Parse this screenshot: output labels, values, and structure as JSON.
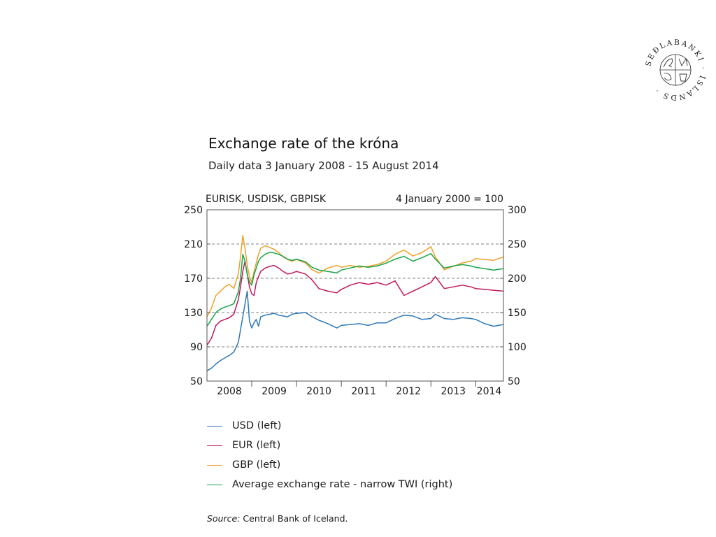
{
  "colors": {
    "usd": "#2f78b7",
    "eur": "#c3195c",
    "gbp": "#f0a02a",
    "twi": "#1aa54a",
    "grid": "#808080",
    "axis": "#555555"
  },
  "logo": {
    "text": "SEÐLABANKI ÍSLANDS",
    "icon": "central-bank-seal-icon"
  },
  "chart_data": {
    "type": "line",
    "title": "Exchange rate of the króna",
    "subtitle": "Daily data 3 January 2008 - 15 August 2014",
    "left_axis_label": "EURISK, USDISK, GBPISK",
    "right_axis_label": "4 January 2000 = 100",
    "left_ylim": [
      50,
      250
    ],
    "right_ylim": [
      50,
      300
    ],
    "left_ticks": [
      "250",
      "210",
      "170",
      "130",
      "90",
      "50"
    ],
    "right_ticks": [
      "300",
      "250",
      "200",
      "150",
      "100",
      "50"
    ],
    "left_tick_values": [
      250,
      210,
      170,
      130,
      90,
      50
    ],
    "right_tick_values": [
      300,
      250,
      200,
      150,
      100,
      50
    ],
    "xlim": [
      2008.0,
      2014.62
    ],
    "x_tick_labels": [
      "2008",
      "2009",
      "2010",
      "2011",
      "2012",
      "2013",
      "2014"
    ],
    "x_tick_positions": [
      2008.5,
      2009.5,
      2010.5,
      2011.5,
      2012.5,
      2013.5,
      2014.3
    ],
    "gridlines_left": [
      210,
      170,
      130,
      90
    ],
    "series": [
      {
        "name": "USD (left)",
        "key": "usd",
        "axis": "left",
        "x": [
          2008.0,
          2008.1,
          2008.2,
          2008.3,
          2008.4,
          2008.5,
          2008.6,
          2008.7,
          2008.75,
          2008.8,
          2008.85,
          2008.9,
          2008.95,
          2009.0,
          2009.05,
          2009.1,
          2009.15,
          2009.2,
          2009.3,
          2009.4,
          2009.5,
          2009.6,
          2009.7,
          2009.8,
          2009.9,
          2010.0,
          2010.2,
          2010.35,
          2010.5,
          2010.7,
          2010.9,
          2011.0,
          2011.2,
          2011.4,
          2011.6,
          2011.8,
          2012.0,
          2012.2,
          2012.4,
          2012.6,
          2012.8,
          2013.0,
          2013.1,
          2013.3,
          2013.5,
          2013.7,
          2013.9,
          2014.0,
          2014.2,
          2014.4,
          2014.62
        ],
        "y": [
          62,
          65,
          70,
          74,
          77,
          80,
          84,
          95,
          110,
          125,
          140,
          155,
          120,
          112,
          118,
          122,
          114,
          125,
          127,
          128,
          129,
          127,
          126,
          125,
          128,
          129,
          130,
          125,
          121,
          117,
          112,
          115,
          116,
          117,
          115,
          118,
          118,
          123,
          127,
          126,
          122,
          123,
          128,
          123,
          122,
          124,
          123,
          122,
          117,
          114,
          116
        ]
      },
      {
        "name": "EUR (left)",
        "key": "eur",
        "axis": "left",
        "x": [
          2008.0,
          2008.1,
          2008.2,
          2008.3,
          2008.4,
          2008.5,
          2008.6,
          2008.7,
          2008.75,
          2008.8,
          2008.85,
          2008.9,
          2008.95,
          2009.0,
          2009.05,
          2009.1,
          2009.15,
          2009.2,
          2009.3,
          2009.4,
          2009.5,
          2009.6,
          2009.7,
          2009.8,
          2009.9,
          2010.0,
          2010.2,
          2010.35,
          2010.5,
          2010.7,
          2010.9,
          2011.0,
          2011.2,
          2011.4,
          2011.6,
          2011.8,
          2012.0,
          2012.2,
          2012.4,
          2012.6,
          2012.8,
          2013.0,
          2013.1,
          2013.3,
          2013.5,
          2013.7,
          2013.9,
          2014.0,
          2014.2,
          2014.4,
          2014.62
        ],
        "y": [
          92,
          100,
          115,
          120,
          122,
          124,
          128,
          145,
          160,
          178,
          190,
          175,
          160,
          152,
          150,
          165,
          172,
          178,
          182,
          184,
          185,
          182,
          178,
          175,
          176,
          178,
          175,
          168,
          158,
          155,
          153,
          157,
          162,
          165,
          163,
          165,
          162,
          167,
          150,
          155,
          160,
          165,
          172,
          158,
          160,
          162,
          160,
          158,
          157,
          156,
          155
        ]
      },
      {
        "name": "GBP (left)",
        "key": "gbp",
        "axis": "left",
        "x": [
          2008.0,
          2008.1,
          2008.2,
          2008.3,
          2008.4,
          2008.5,
          2008.6,
          2008.7,
          2008.75,
          2008.8,
          2008.85,
          2008.9,
          2008.95,
          2009.0,
          2009.05,
          2009.1,
          2009.15,
          2009.2,
          2009.3,
          2009.4,
          2009.5,
          2009.6,
          2009.7,
          2009.8,
          2009.9,
          2010.0,
          2010.2,
          2010.35,
          2010.5,
          2010.7,
          2010.9,
          2011.0,
          2011.2,
          2011.4,
          2011.6,
          2011.8,
          2012.0,
          2012.2,
          2012.4,
          2012.6,
          2012.8,
          2013.0,
          2013.1,
          2013.3,
          2013.5,
          2013.7,
          2013.9,
          2014.0,
          2014.2,
          2014.4,
          2014.62
        ],
        "y": [
          125,
          135,
          150,
          155,
          160,
          163,
          158,
          175,
          195,
          220,
          205,
          185,
          172,
          165,
          178,
          188,
          198,
          205,
          208,
          206,
          204,
          200,
          195,
          192,
          190,
          192,
          188,
          180,
          176,
          182,
          185,
          183,
          185,
          183,
          184,
          186,
          190,
          198,
          203,
          196,
          200,
          207,
          195,
          180,
          184,
          188,
          190,
          193,
          192,
          191,
          195
        ]
      },
      {
        "name": "Average exchange rate - narrow TWI (right)",
        "key": "twi",
        "axis": "right",
        "x": [
          2008.0,
          2008.1,
          2008.2,
          2008.3,
          2008.4,
          2008.5,
          2008.6,
          2008.7,
          2008.75,
          2008.8,
          2008.85,
          2008.9,
          2008.95,
          2009.0,
          2009.05,
          2009.1,
          2009.15,
          2009.2,
          2009.3,
          2009.4,
          2009.5,
          2009.6,
          2009.7,
          2009.8,
          2009.9,
          2010.0,
          2010.2,
          2010.35,
          2010.5,
          2010.7,
          2010.9,
          2011.0,
          2011.2,
          2011.4,
          2011.6,
          2011.8,
          2012.0,
          2012.2,
          2012.4,
          2012.6,
          2012.8,
          2013.0,
          2013.1,
          2013.3,
          2013.5,
          2013.7,
          2013.9,
          2014.0,
          2014.2,
          2014.4,
          2014.62
        ],
        "y": [
          130,
          140,
          150,
          155,
          158,
          160,
          163,
          180,
          200,
          235,
          225,
          205,
          195,
          190,
          205,
          215,
          225,
          230,
          235,
          238,
          237,
          235,
          232,
          228,
          226,
          228,
          224,
          216,
          212,
          210,
          208,
          212,
          215,
          218,
          216,
          218,
          222,
          228,
          232,
          225,
          230,
          236,
          228,
          215,
          218,
          220,
          218,
          216,
          214,
          212,
          214
        ]
      }
    ]
  },
  "legend": [
    {
      "key": "usd",
      "label": "USD (left)"
    },
    {
      "key": "eur",
      "label": "EUR (left)"
    },
    {
      "key": "gbp",
      "label": "GBP (left)"
    },
    {
      "key": "twi",
      "label": "Average exchange rate - narrow TWI (right)"
    }
  ],
  "source": {
    "prefix": "Source:",
    "text": " Central Bank of Iceland."
  }
}
